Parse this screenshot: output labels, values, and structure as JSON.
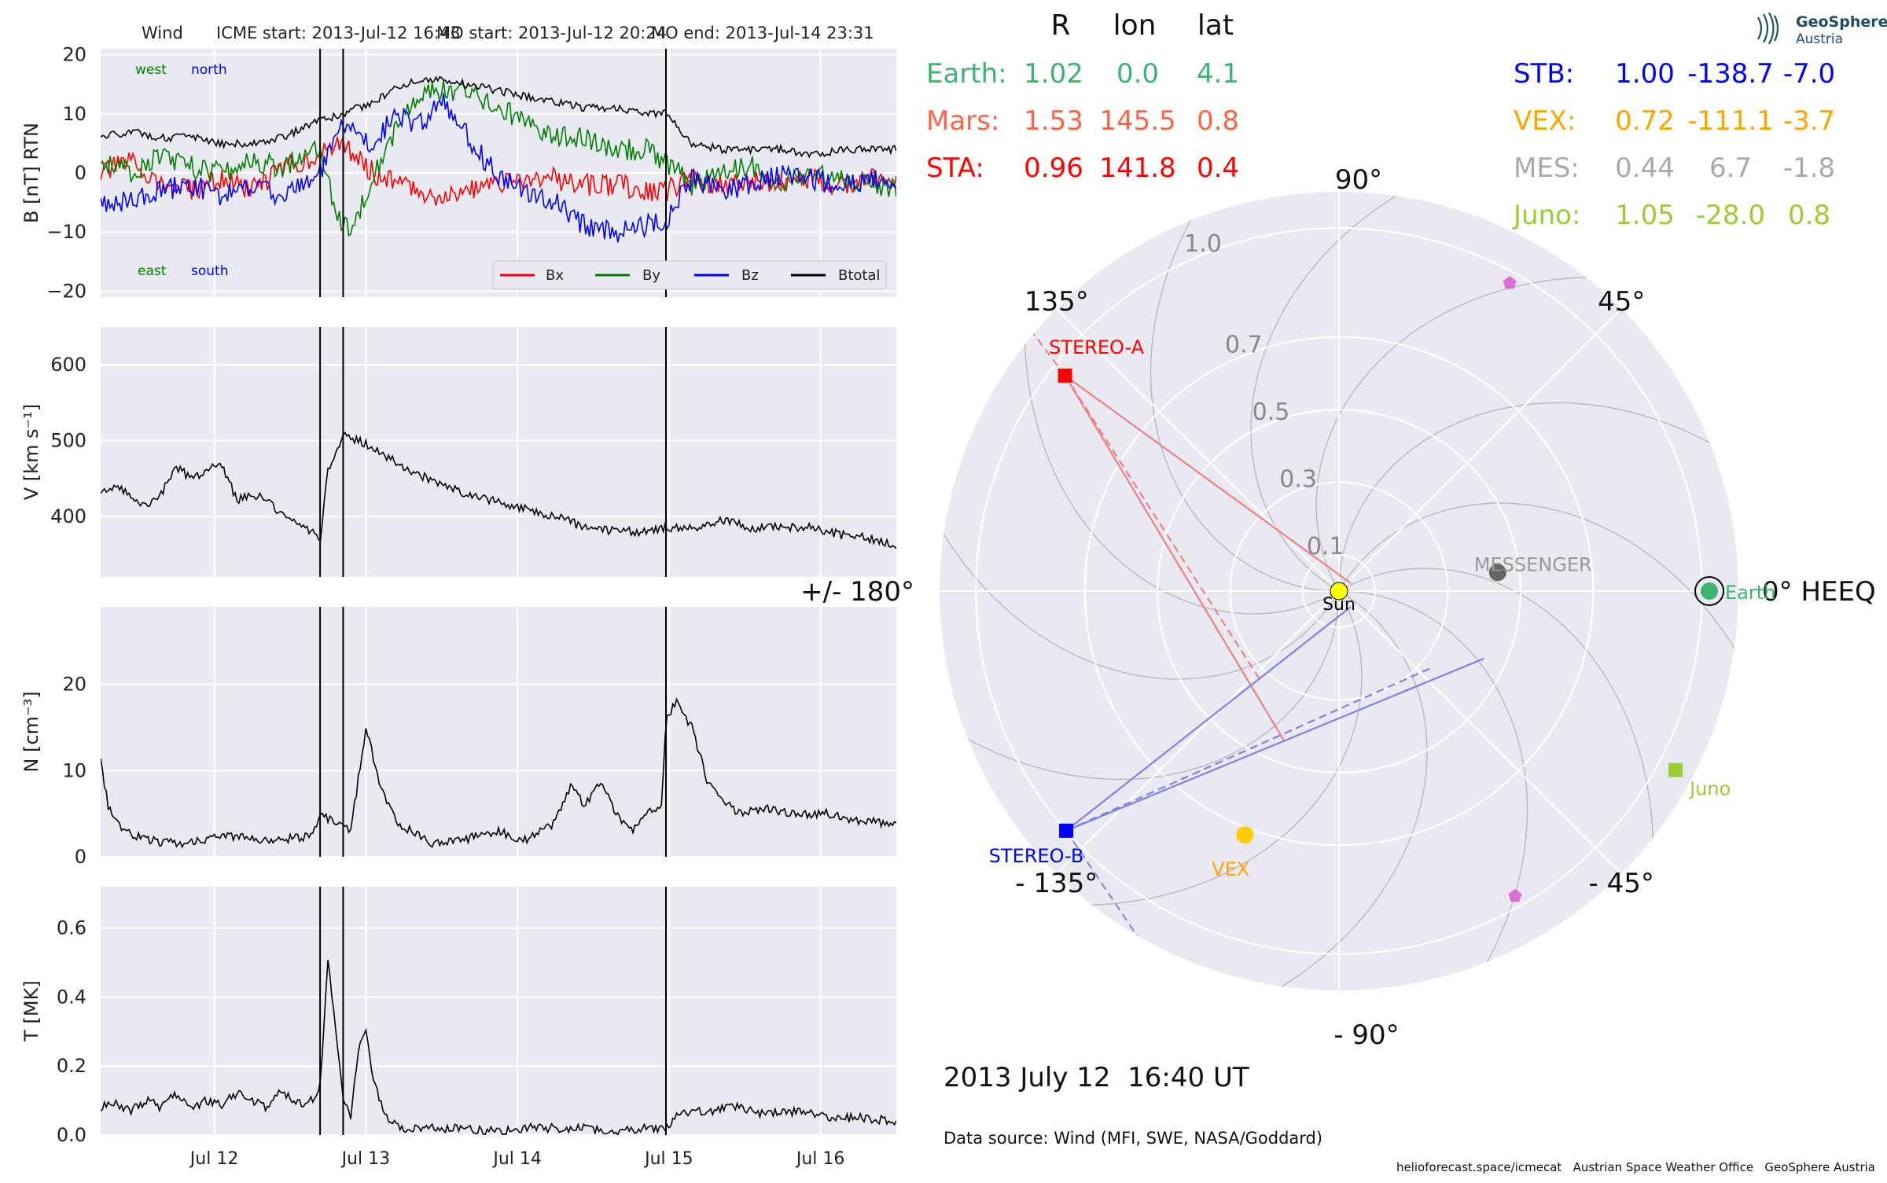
{
  "header": {
    "mission": "Wind",
    "icme_start": "ICME start: 2013-Jul-12 16:43",
    "mo_start": "MO start: 2013-Jul-12 20:24",
    "mo_end": "MO end: 2013-Jul-14 23:31"
  },
  "colors": {
    "panel_bg": "#e9e9f1",
    "grid": "#ffffff",
    "bx": "#ff0000",
    "by": "#008000",
    "bz": "#0000ff",
    "btotal": "#000000"
  },
  "chart_data": [
    {
      "type": "line",
      "ylabel": "B [nT] RTN",
      "ylim": [
        -21,
        21
      ],
      "yticks": [
        20,
        10,
        0,
        -10,
        -20
      ],
      "ytick_labels": [
        "20",
        "10",
        "0",
        "−10",
        "−20"
      ],
      "xlim": [
        0,
        5.25
      ],
      "xticks": [
        0.75,
        1.75,
        2.75,
        3.75,
        4.75
      ],
      "xtick_labels": [
        "Jul 12",
        "Jul 13",
        "Jul 14",
        "Jul 15",
        "Jul 16"
      ],
      "annotations": {
        "west": "west",
        "north": "north",
        "east": "east",
        "south": "south"
      },
      "legend": {
        "placement": "lower-right",
        "entries": [
          "Bx",
          "By",
          "Bz",
          "Btotal"
        ]
      },
      "event_lines": [
        1.4479,
        1.6,
        3.73
      ],
      "series": [
        {
          "name": "Bx",
          "color": "#ff0000",
          "x": [
            0,
            0.2,
            0.4,
            0.6,
            0.8,
            1.0,
            1.2,
            1.45,
            1.6,
            1.8,
            2.0,
            2.2,
            2.4,
            2.6,
            2.8,
            3.0,
            3.2,
            3.4,
            3.6,
            3.73,
            3.9,
            4.1,
            4.3,
            4.5,
            4.7,
            4.9,
            5.1,
            5.25
          ],
          "y": [
            0,
            2,
            -2,
            -3,
            -1,
            -3,
            1,
            3,
            5,
            0,
            -2,
            -4,
            -3,
            -2,
            -1,
            -1,
            -2,
            -2,
            -3,
            -3,
            -1,
            -2,
            -1,
            -2,
            -1,
            -2,
            -1,
            -1
          ]
        },
        {
          "name": "By",
          "color": "#008000",
          "x": [
            0,
            0.2,
            0.4,
            0.6,
            0.8,
            1.0,
            1.2,
            1.45,
            1.55,
            1.65,
            1.8,
            2.0,
            2.2,
            2.4,
            2.6,
            2.8,
            3.0,
            3.2,
            3.4,
            3.6,
            3.73,
            3.9,
            4.1,
            4.3,
            4.5,
            4.7,
            4.9,
            5.1,
            5.25
          ],
          "y": [
            2,
            0,
            3,
            1,
            0,
            2,
            1,
            5,
            -7,
            -10,
            0,
            10,
            14,
            14,
            11,
            9,
            6,
            6,
            4,
            4,
            2,
            -2,
            0,
            1,
            -2,
            0,
            -1,
            -2,
            -3
          ]
        },
        {
          "name": "Bz",
          "color": "#0000ff",
          "x": [
            0,
            0.2,
            0.4,
            0.6,
            0.8,
            1.0,
            1.2,
            1.45,
            1.6,
            1.8,
            1.95,
            2.1,
            2.25,
            2.4,
            2.6,
            2.8,
            3.0,
            3.2,
            3.4,
            3.6,
            3.73,
            3.9,
            4.1,
            4.3,
            4.5,
            4.7,
            4.9,
            5.1,
            5.25
          ],
          "y": [
            -5,
            -5,
            -3,
            -2,
            -4,
            -2,
            -4,
            0,
            8,
            5,
            10,
            8,
            12,
            7,
            0,
            -3,
            -5,
            -9,
            -10,
            -9,
            -8,
            -1,
            -3,
            -2,
            0,
            -1,
            -2,
            -1,
            -2
          ]
        },
        {
          "name": "Btotal",
          "color": "#000000",
          "x": [
            0,
            0.2,
            0.4,
            0.6,
            0.8,
            1.0,
            1.2,
            1.45,
            1.6,
            1.8,
            2.0,
            2.2,
            2.4,
            2.6,
            2.8,
            3.0,
            3.2,
            3.4,
            3.6,
            3.73,
            3.9,
            4.1,
            4.3,
            4.5,
            4.7,
            4.9,
            5.1,
            5.25
          ],
          "y": [
            6,
            7,
            6,
            6,
            5,
            5,
            6,
            9,
            10,
            12,
            15,
            16,
            15,
            14,
            13,
            12,
            11,
            11,
            10,
            10,
            5,
            4,
            4,
            4,
            3,
            4,
            4,
            4
          ]
        }
      ]
    },
    {
      "type": "line",
      "ylabel": "V [km s⁻¹]",
      "ylim": [
        320,
        650
      ],
      "yticks": [
        400,
        500,
        600
      ],
      "ytick_labels": [
        "400",
        "500",
        "600"
      ],
      "xlim": [
        0,
        5.25
      ],
      "event_lines": [
        1.4479,
        1.6,
        3.73
      ],
      "series": [
        {
          "name": "V",
          "color": "#000000",
          "x": [
            0,
            0.1,
            0.2,
            0.3,
            0.4,
            0.5,
            0.6,
            0.7,
            0.8,
            0.9,
            1.0,
            1.1,
            1.2,
            1.3,
            1.4,
            1.45,
            1.5,
            1.6,
            1.7,
            1.8,
            2.0,
            2.2,
            2.4,
            2.6,
            2.8,
            3.0,
            3.2,
            3.4,
            3.6,
            3.73,
            3.9,
            4.1,
            4.3,
            4.5,
            4.7,
            4.9,
            5.1,
            5.25
          ],
          "y": [
            430,
            440,
            425,
            415,
            430,
            465,
            450,
            460,
            470,
            420,
            430,
            420,
            400,
            390,
            380,
            370,
            460,
            510,
            500,
            490,
            465,
            445,
            430,
            420,
            410,
            400,
            385,
            380,
            380,
            385,
            385,
            395,
            385,
            385,
            385,
            375,
            370,
            360
          ]
        }
      ]
    },
    {
      "type": "line",
      "ylabel": "N [cm⁻³]",
      "ylim": [
        0,
        29
      ],
      "yticks": [
        0,
        10,
        20
      ],
      "ytick_labels": [
        "0",
        "10",
        "20"
      ],
      "xlim": [
        0,
        5.25
      ],
      "event_lines": [
        1.4479,
        1.6,
        3.73
      ],
      "series": [
        {
          "name": "N",
          "color": "#000000",
          "x": [
            0,
            0.05,
            0.15,
            0.3,
            0.5,
            0.7,
            0.8,
            1.0,
            1.2,
            1.4,
            1.45,
            1.55,
            1.65,
            1.75,
            1.85,
            1.95,
            2.05,
            2.2,
            2.4,
            2.6,
            2.8,
            3.0,
            3.1,
            3.2,
            3.3,
            3.4,
            3.5,
            3.6,
            3.7,
            3.73,
            3.8,
            3.9,
            4.0,
            4.2,
            4.4,
            4.6,
            4.8,
            5.0,
            5.25
          ],
          "y": [
            11,
            6,
            3,
            2,
            1.5,
            2,
            2.5,
            2,
            2,
            2.5,
            5,
            4,
            3,
            15,
            8,
            4,
            3,
            1.5,
            2,
            3,
            2,
            4,
            8,
            6,
            9,
            5,
            3,
            5,
            6,
            16,
            18,
            15,
            9,
            5,
            5.5,
            5,
            5,
            4,
            4
          ]
        }
      ]
    },
    {
      "type": "line",
      "ylabel": "T [MK]",
      "ylim": [
        0,
        0.72
      ],
      "yticks": [
        0.0,
        0.2,
        0.4,
        0.6
      ],
      "ytick_labels": [
        "0.0",
        "0.2",
        "0.4",
        "0.6"
      ],
      "xlim": [
        0,
        5.25
      ],
      "xticks": [
        0.75,
        1.75,
        2.75,
        3.75,
        4.75
      ],
      "xtick_labels": [
        "Jul 12",
        "Jul 13",
        "Jul 14",
        "Jul 15",
        "Jul 16"
      ],
      "event_lines": [
        1.4479,
        1.6,
        3.73
      ],
      "series": [
        {
          "name": "T",
          "color": "#000000",
          "x": [
            0,
            0.1,
            0.2,
            0.3,
            0.4,
            0.5,
            0.6,
            0.7,
            0.8,
            0.9,
            1.0,
            1.1,
            1.2,
            1.3,
            1.4,
            1.45,
            1.5,
            1.55,
            1.6,
            1.65,
            1.7,
            1.75,
            1.8,
            1.9,
            2.0,
            2.2,
            2.4,
            2.6,
            2.8,
            3.0,
            3.2,
            3.4,
            3.6,
            3.73,
            3.8,
            4.0,
            4.2,
            4.4,
            4.6,
            4.8,
            5.0,
            5.25
          ],
          "y": [
            0.08,
            0.09,
            0.07,
            0.1,
            0.08,
            0.12,
            0.08,
            0.1,
            0.09,
            0.12,
            0.1,
            0.08,
            0.13,
            0.09,
            0.1,
            0.15,
            0.5,
            0.3,
            0.1,
            0.05,
            0.25,
            0.3,
            0.15,
            0.04,
            0.02,
            0.02,
            0.02,
            0.01,
            0.02,
            0.02,
            0.02,
            0.01,
            0.02,
            0.02,
            0.06,
            0.07,
            0.08,
            0.06,
            0.07,
            0.05,
            0.05,
            0.04
          ]
        }
      ]
    },
    {
      "type": "scatter",
      "coordinate_system": "polar",
      "radius_max": 1.1,
      "radial_ticks": [
        0.1,
        0.3,
        0.5,
        0.7,
        1.0
      ],
      "angle_labels": [
        {
          "angle": 0,
          "label": "0° HEEQ"
        },
        {
          "angle": 45,
          "label": "45°"
        },
        {
          "angle": 90,
          "label": "90°"
        },
        {
          "angle": 135,
          "label": "135°"
        },
        {
          "angle": 180,
          "label": "+/- 180°"
        },
        {
          "angle": -135,
          "label": "- 135°"
        },
        {
          "angle": -90,
          "label": "- 90°"
        },
        {
          "angle": -45,
          "label": "- 45°"
        }
      ],
      "points": [
        {
          "name": "Sun",
          "label": "Sun",
          "r": 0.0,
          "lon": 0.0,
          "color": "#ffff00",
          "marker": "circle"
        },
        {
          "name": "Earth",
          "label": "Earth",
          "r": 1.02,
          "lon": 0.0,
          "color": "#3cb371",
          "marker": "circle-ring"
        },
        {
          "name": "STEREO-A",
          "label": "STEREO-A",
          "r": 0.96,
          "lon": 141.8,
          "color": "#ff0000",
          "marker": "square"
        },
        {
          "name": "STEREO-B",
          "label": "STEREO-B",
          "r": 1.0,
          "lon": -138.7,
          "color": "#0000ff",
          "marker": "square"
        },
        {
          "name": "VEX",
          "label": "VEX",
          "r": 0.72,
          "lon": -111.1,
          "color": "#ffcc00",
          "marker": "circle"
        },
        {
          "name": "MESSENGER",
          "label": "MESSENGER",
          "r": 0.44,
          "lon": 6.7,
          "color": "#666666",
          "marker": "circle"
        },
        {
          "name": "Juno",
          "label": "Juno",
          "r": 1.05,
          "lon": -28.0,
          "color": "#9acd32",
          "marker": "square"
        },
        {
          "name": "Pentagon-1",
          "label": "",
          "r": 0.97,
          "lon": 61.0,
          "color": "#da70d6",
          "marker": "pentagon"
        },
        {
          "name": "Pentagon-2",
          "label": "",
          "r": 0.97,
          "lon": -60.0,
          "color": "#da70d6",
          "marker": "pentagon"
        }
      ],
      "position_table": {
        "headers": [
          "R",
          "lon",
          "lat"
        ],
        "left": [
          {
            "name": "Earth:",
            "R": "1.02",
            "lon": "0.0",
            "lat": "4.1",
            "color": "#3cb371"
          },
          {
            "name": "Mars:",
            "R": "1.53",
            "lon": "145.5",
            "lat": "0.8",
            "color": "#ff6347"
          },
          {
            "name": "STA:",
            "R": "0.96",
            "lon": "141.8",
            "lat": "0.4",
            "color": "#ff0000"
          }
        ],
        "right": [
          {
            "name": "STB:",
            "R": "1.00",
            "lon": "-138.7",
            "lat": "-7.0",
            "color": "#0000ff"
          },
          {
            "name": "VEX:",
            "R": "0.72",
            "lon": "-111.1",
            "lat": "-3.7",
            "color": "#ffa500"
          },
          {
            "name": "MES:",
            "R": "0.44",
            "lon": "6.7",
            "lat": "-1.8",
            "color": "#a9a9a9"
          },
          {
            "name": "Juno:",
            "R": "1.05",
            "lon": "-28.0",
            "lat": "0.8",
            "color": "#9acd32"
          }
        ]
      },
      "fieldlines_from": [
        "STEREO-A",
        "STEREO-B"
      ]
    }
  ],
  "timestamp": "2013 July 12  16:40 UT",
  "data_source": "Data source: Wind (MFI, SWE, NASA/Goddard)",
  "footer": "helioforecast.space/icmecat   Austrian Space Weather Office   GeoSphere Austria",
  "logo": {
    "line1": "GeoSphere",
    "line2": "Austria"
  }
}
